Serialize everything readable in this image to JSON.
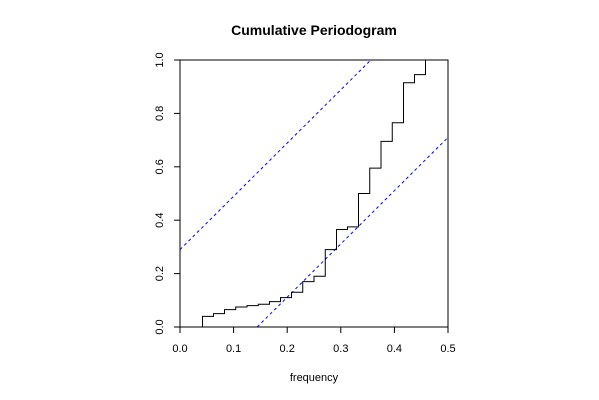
{
  "chart_data": {
    "type": "line",
    "title": "Cumulative Periodogram",
    "xlabel": "frequency",
    "ylabel": "",
    "xlim": [
      0.0,
      0.5
    ],
    "ylim": [
      0.0,
      1.0
    ],
    "x_ticks": [
      "0.0",
      "0.1",
      "0.2",
      "0.3",
      "0.4",
      "0.5"
    ],
    "x_tick_values": [
      0.0,
      0.1,
      0.2,
      0.3,
      0.4,
      0.5
    ],
    "y_ticks": [
      "0.0",
      "0.2",
      "0.4",
      "0.6",
      "0.8",
      "1.0"
    ],
    "y_tick_values": [
      0.0,
      0.2,
      0.4,
      0.6,
      0.8,
      1.0
    ],
    "grid": false,
    "series": [
      {
        "style": "step",
        "color": "#000000",
        "x": [
          0.021,
          0.042,
          0.0625,
          0.083,
          0.104,
          0.125,
          0.146,
          0.167,
          0.1875,
          0.208,
          0.229,
          0.25,
          0.271,
          0.292,
          0.3125,
          0.333,
          0.354,
          0.375,
          0.396,
          0.417,
          0.4375,
          0.458,
          0.479
        ],
        "y": [
          0.0,
          0.04,
          0.05,
          0.065,
          0.075,
          0.08,
          0.085,
          0.095,
          0.11,
          0.13,
          0.17,
          0.19,
          0.29,
          0.365,
          0.375,
          0.5,
          0.595,
          0.695,
          0.765,
          0.915,
          0.945,
          1.0,
          1.0
        ]
      }
    ],
    "bounds": [
      {
        "name": "upper",
        "color": "#0000ff",
        "style": "dashed",
        "x": [
          0.0,
          0.356
        ],
        "y": [
          0.29,
          1.0
        ]
      },
      {
        "name": "lower",
        "color": "#0000ff",
        "style": "dashed",
        "x": [
          0.144,
          0.5
        ],
        "y": [
          0.0,
          0.71
        ]
      }
    ]
  }
}
